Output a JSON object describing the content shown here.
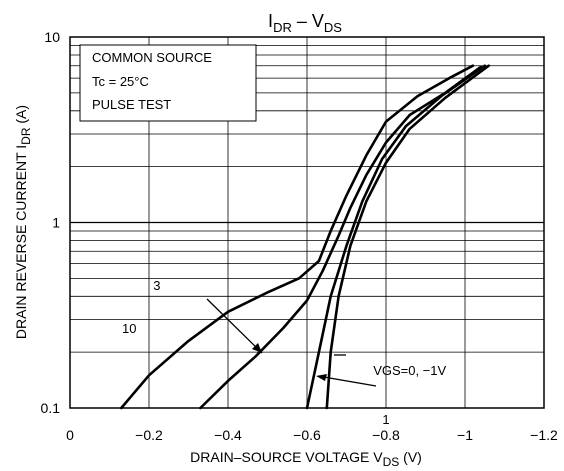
{
  "chart_data": {
    "type": "line",
    "title": {
      "main": "I",
      "sub1": "DR",
      "mid": " – V",
      "sub2": "DS"
    },
    "xlabel": {
      "main": "DRAIN–SOURCE VOLTAGE   V",
      "sub": "DS",
      "unit": "   (V)"
    },
    "ylabel": {
      "main": "DRAIN REVERSE CURRENT   I",
      "sub": "DR",
      "unit": "   (A)"
    },
    "xlim": [
      0,
      -1.2
    ],
    "ylim": [
      0.1,
      10
    ],
    "yscale": "log",
    "grid": true,
    "x_ticks": [
      {
        "value": 0,
        "label": "0"
      },
      {
        "value": -0.2,
        "label": "−0.2"
      },
      {
        "value": -0.4,
        "label": "−0.4"
      },
      {
        "value": -0.6,
        "label": "−0.6"
      },
      {
        "value": -0.8,
        "label": "−0.8"
      },
      {
        "value": -1.0,
        "label": "−1"
      },
      {
        "value": -1.2,
        "label": "−1.2"
      }
    ],
    "y_ticks": [
      {
        "value": 0.1,
        "label": "0.1"
      },
      {
        "value": 1,
        "label": "1"
      },
      {
        "value": 10,
        "label": "10"
      }
    ],
    "conditions": [
      "COMMON SOURCE",
      "Tc = 25°C",
      "PULSE TEST"
    ],
    "series": [
      {
        "name": "10",
        "x": [
          -0.13,
          -0.2,
          -0.3,
          -0.4,
          -0.5,
          -0.58,
          -0.63,
          -0.66,
          -0.7,
          -0.75,
          -0.8,
          -0.88,
          -0.96,
          -1.02
        ],
        "y": [
          0.1,
          0.15,
          0.23,
          0.33,
          0.42,
          0.5,
          0.62,
          0.9,
          1.4,
          2.3,
          3.5,
          4.8,
          6.0,
          7.0
        ]
      },
      {
        "name": "3",
        "x": [
          -0.33,
          -0.4,
          -0.47,
          -0.54,
          -0.6,
          -0.64,
          -0.68,
          -0.71,
          -0.75,
          -0.8,
          -0.86,
          -0.95,
          -1.04
        ],
        "y": [
          0.1,
          0.14,
          0.19,
          0.27,
          0.38,
          0.55,
          0.85,
          1.2,
          1.8,
          2.7,
          3.8,
          5.0,
          6.9
        ]
      },
      {
        "name": "1",
        "x": [
          -0.6,
          -0.63,
          -0.66,
          -0.7,
          -0.74,
          -0.79,
          -0.85,
          -0.94,
          -1.05
        ],
        "y": [
          0.1,
          0.2,
          0.4,
          0.75,
          1.3,
          2.2,
          3.3,
          4.8,
          7.0
        ]
      },
      {
        "name": "VGS=0, −1V",
        "x": [
          -0.65,
          -0.66,
          -0.68,
          -0.71,
          -0.75,
          -0.8,
          -0.86,
          -0.95,
          -1.06
        ],
        "y": [
          0.1,
          0.2,
          0.4,
          0.75,
          1.3,
          2.1,
          3.2,
          4.7,
          7.0
        ]
      }
    ],
    "annotations": [
      {
        "text": "10",
        "x": -0.15,
        "y": 0.27
      },
      {
        "text": "3",
        "x": -0.22,
        "y": 0.46
      },
      {
        "text": "VGS=0, −1V",
        "x": -0.86,
        "y": 0.16
      },
      {
        "text": "1",
        "x": -0.8,
        "y": 0.087
      }
    ]
  }
}
